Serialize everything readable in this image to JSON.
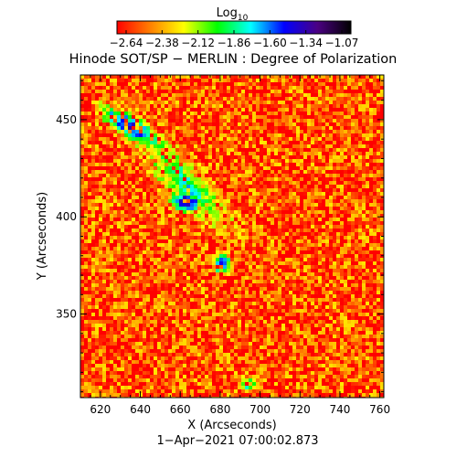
{
  "chart_data": {
    "type": "heatmap",
    "title": "Hinode SOT/SP − MERLIN : Degree of Polarization",
    "colorbar": {
      "label": "Log",
      "label_subscript": "10",
      "ticks": [
        "−2.64",
        "−2.38",
        "−2.12",
        "−1.86",
        "−1.60",
        "−1.34",
        "−1.07"
      ],
      "range": [
        -2.64,
        -1.07
      ],
      "colors": [
        "#ff0000",
        "#ff8000",
        "#ffff00",
        "#00ff00",
        "#00ffff",
        "#0000ff",
        "#4b0082",
        "#000000"
      ]
    },
    "xlabel": "X (Arcseconds)",
    "ylabel": "Y (Arcseconds)",
    "xlim": [
      610,
      762
    ],
    "ylim": [
      307,
      473
    ],
    "xticks": [
      "620",
      "640",
      "660",
      "680",
      "700",
      "720",
      "740",
      "760"
    ],
    "yticks": [
      "350",
      "400",
      "450"
    ],
    "background_level": -2.5,
    "features": [
      {
        "x": [
          622,
          648
        ],
        "y": [
          438,
          455
        ],
        "level": -1.2,
        "shape": "band"
      },
      {
        "x": [
          642,
          682
        ],
        "y": [
          398,
          438
        ],
        "level": -1.8,
        "shape": "band"
      },
      {
        "x": [
          655,
          672
        ],
        "y": [
          402,
          413
        ],
        "level": -1.15,
        "shape": "blob"
      },
      {
        "x": [
          676,
          686
        ],
        "y": [
          370,
          382
        ],
        "level": -1.3,
        "shape": "blob"
      },
      {
        "x": [
          688,
          700
        ],
        "y": [
          310,
          318
        ],
        "level": -1.7,
        "shape": "blob"
      }
    ],
    "footer": "1−Apr−2021 07:00:02.873"
  }
}
